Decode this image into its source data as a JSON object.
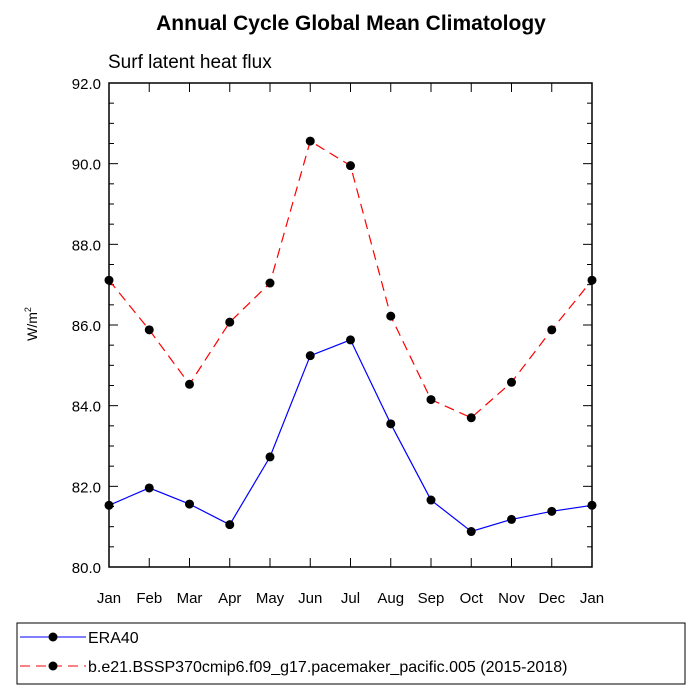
{
  "chart_data": {
    "type": "line",
    "title": "Annual Cycle Global Mean Climatology",
    "subtitle": "Surf latent heat flux",
    "ylabel": "W/m",
    "ylabel_superscript": "2",
    "categories": [
      "Jan",
      "Feb",
      "Mar",
      "Apr",
      "May",
      "Jun",
      "Jul",
      "Aug",
      "Sep",
      "Oct",
      "Nov",
      "Dec",
      "Jan"
    ],
    "ylim": [
      80.0,
      92.0
    ],
    "yticks": [
      80.0,
      82.0,
      84.0,
      86.0,
      88.0,
      90.0,
      92.0
    ],
    "ytick_labels": [
      "80.0",
      "82.0",
      "84.0",
      "86.0",
      "88.0",
      "90.0",
      "92.0"
    ],
    "grid": false,
    "legend_position": "bottom",
    "series": [
      {
        "name": "ERA40",
        "color": "#0000ff",
        "dash": "solid",
        "marker": "circle",
        "values": [
          81.53,
          81.96,
          81.56,
          81.05,
          82.73,
          85.24,
          85.63,
          83.55,
          81.66,
          80.88,
          81.18,
          81.38,
          81.53
        ]
      },
      {
        "name": "b.e21.BSSP370cmip6.f09_g17.pacemaker_pacific.005 (2015-2018)",
        "color": "#ff0000",
        "dash": "dashed",
        "marker": "circle",
        "values": [
          87.11,
          85.88,
          84.53,
          86.07,
          87.04,
          90.56,
          89.95,
          86.22,
          84.15,
          83.7,
          84.58,
          85.88,
          87.11
        ]
      }
    ]
  }
}
